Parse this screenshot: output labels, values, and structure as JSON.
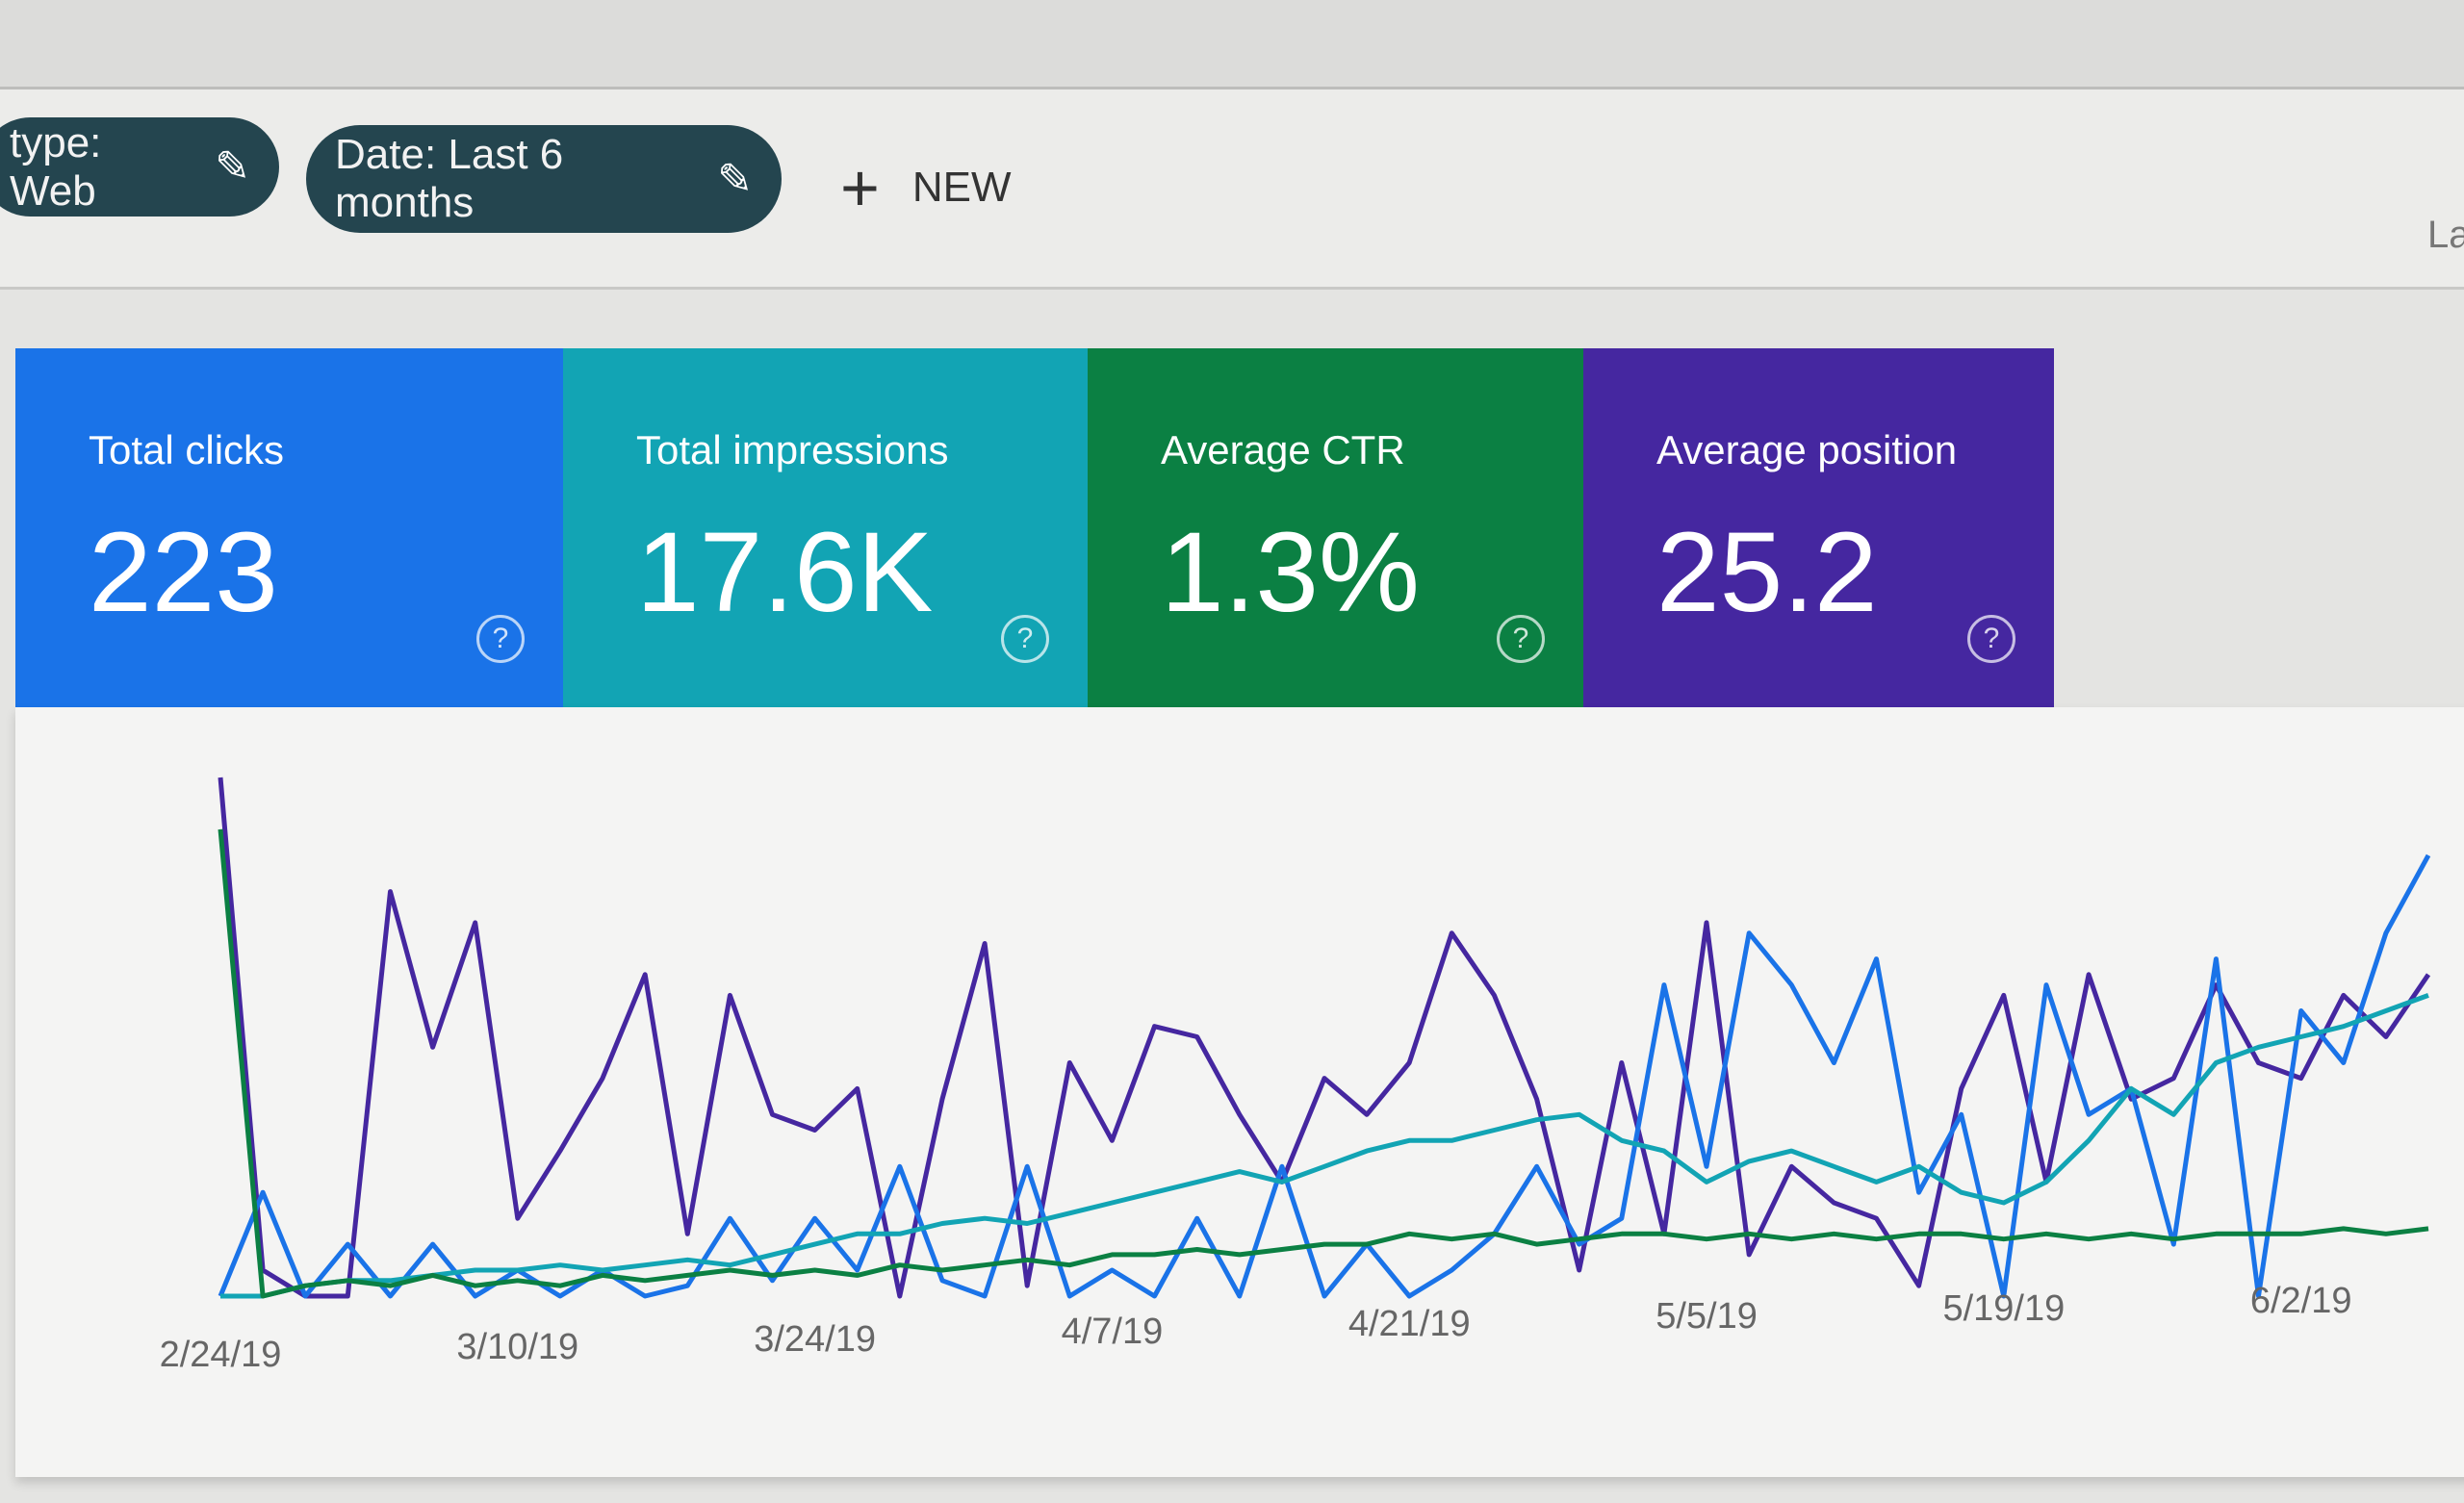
{
  "filters": {
    "type_chip": "type: Web",
    "date_chip": "Date: Last 6 months",
    "new_label": "NEW",
    "cut_text": "La"
  },
  "cards": [
    {
      "label": "Total clicks",
      "value": "223",
      "color": "#1a73e8"
    },
    {
      "label": "Total impressions",
      "value": "17.6K",
      "color": "#12a4b4"
    },
    {
      "label": "Average CTR",
      "value": "1.3%",
      "color": "#0b8043"
    },
    {
      "label": "Average position",
      "value": "25.2",
      "color": "#4527a0"
    }
  ],
  "chart_data": {
    "type": "line",
    "x_tick_labels": [
      "2/24/19",
      "3/10/19",
      "3/24/19",
      "4/7/19",
      "4/21/19",
      "5/5/19",
      "5/19/19",
      "6/2/19"
    ],
    "grid": false,
    "series": [
      {
        "color": "#4527a0",
        "values": [
          100,
          5,
          0,
          0,
          78,
          48,
          72,
          15,
          28,
          42,
          62,
          12,
          58,
          35,
          32,
          40,
          0,
          38,
          68,
          2,
          45,
          30,
          52,
          50,
          35,
          22,
          42,
          35,
          45,
          70,
          58,
          38,
          5,
          45,
          12,
          72,
          8,
          25,
          18,
          15,
          2,
          40,
          58,
          22,
          62,
          38,
          42,
          60,
          45,
          42,
          58,
          50,
          62
        ]
      },
      {
        "color": "#1a73e8",
        "values": [
          0,
          20,
          0,
          10,
          0,
          10,
          0,
          5,
          0,
          5,
          0,
          2,
          15,
          3,
          15,
          5,
          25,
          3,
          0,
          25,
          0,
          5,
          0,
          15,
          0,
          25,
          0,
          10,
          0,
          5,
          12,
          25,
          10,
          15,
          60,
          25,
          70,
          60,
          45,
          65,
          20,
          35,
          0,
          60,
          35,
          40,
          10,
          65,
          0,
          55,
          45,
          70,
          85
        ]
      },
      {
        "color": "#12a4b4",
        "values": [
          0,
          0,
          2,
          3,
          3,
          4,
          5,
          5,
          6,
          5,
          6,
          7,
          6,
          8,
          10,
          12,
          12,
          14,
          15,
          14,
          16,
          18,
          20,
          22,
          24,
          22,
          25,
          28,
          30,
          30,
          32,
          34,
          35,
          30,
          28,
          22,
          26,
          28,
          25,
          22,
          25,
          20,
          18,
          22,
          30,
          40,
          35,
          45,
          48,
          50,
          52,
          55,
          58
        ]
      },
      {
        "color": "#0b8043",
        "values": [
          90,
          0,
          2,
          3,
          2,
          4,
          2,
          3,
          2,
          4,
          3,
          4,
          5,
          4,
          5,
          4,
          6,
          5,
          6,
          7,
          6,
          8,
          8,
          9,
          8,
          9,
          10,
          10,
          12,
          11,
          12,
          10,
          11,
          12,
          12,
          11,
          12,
          11,
          12,
          11,
          12,
          12,
          11,
          12,
          11,
          12,
          11,
          12,
          12,
          12,
          13,
          12,
          13
        ]
      }
    ]
  }
}
